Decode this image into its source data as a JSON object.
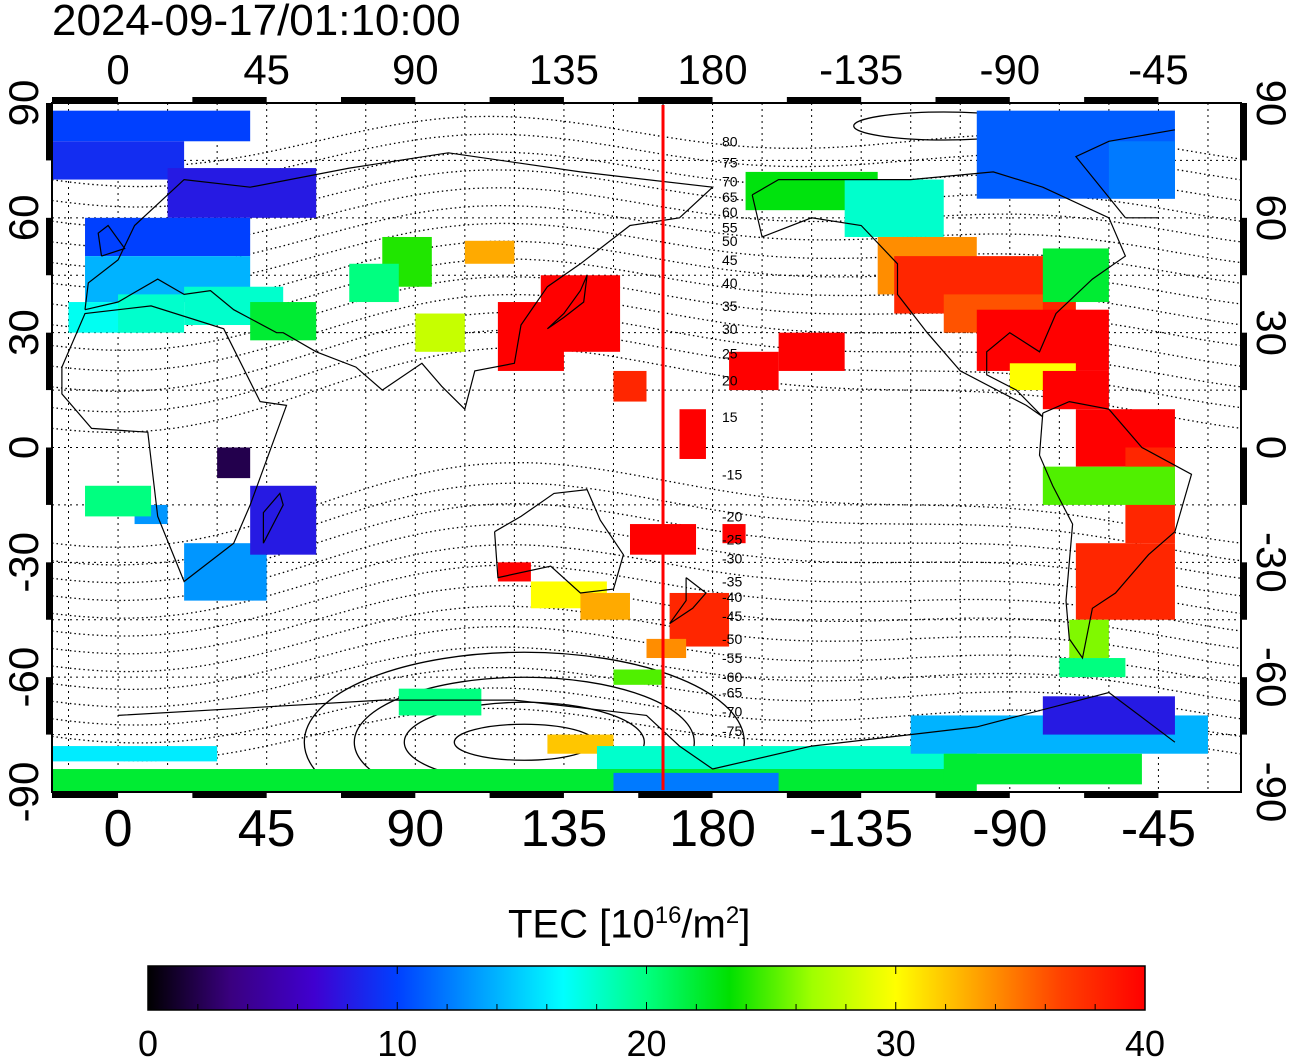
{
  "title": "2024-09-17/01:10:00",
  "map": {
    "lon_ticks_top": [
      "0",
      "45",
      "90",
      "135",
      "180",
      "-135",
      "-90",
      "-45"
    ],
    "lon_ticks_bottom": [
      "0",
      "45",
      "90",
      "135",
      "180",
      "-135",
      "-90",
      "-45"
    ],
    "lat_ticks_left": [
      "90",
      "60",
      "30",
      "0",
      "-30",
      "-60",
      "-90"
    ],
    "lat_ticks_right": [
      "90",
      "60",
      "30",
      "0",
      "-30",
      "-60",
      "-90"
    ],
    "lon_range": [
      -20,
      340
    ],
    "lat_range": [
      -90,
      90
    ],
    "terminator_lon": 165,
    "contour_labels": [
      "80",
      "75",
      "70",
      "65",
      "60",
      "55",
      "50",
      "45",
      "40",
      "35",
      "30",
      "25",
      "20",
      "15",
      "-15",
      "-20",
      "-25",
      "-30",
      "-35",
      "-40",
      "-45",
      "-50",
      "-55",
      "-60",
      "-65",
      "-70",
      "-75"
    ],
    "colors": {
      "terminator": "#ff0000"
    }
  },
  "colorbar": {
    "label_main": "TEC  [10",
    "label_exp1": "16",
    "label_mid": "/m",
    "label_exp2": "2",
    "label_end": "]",
    "ticks": [
      "0",
      "10",
      "20",
      "30",
      "40"
    ],
    "range": [
      0,
      40
    ],
    "colors": [
      "#000000",
      "#3a0080",
      "#4000d0",
      "#0040ff",
      "#00a0ff",
      "#00ffff",
      "#00ff80",
      "#00e000",
      "#a0ff00",
      "#ffff00",
      "#ffa000",
      "#ff4000",
      "#ff0000"
    ]
  }
}
